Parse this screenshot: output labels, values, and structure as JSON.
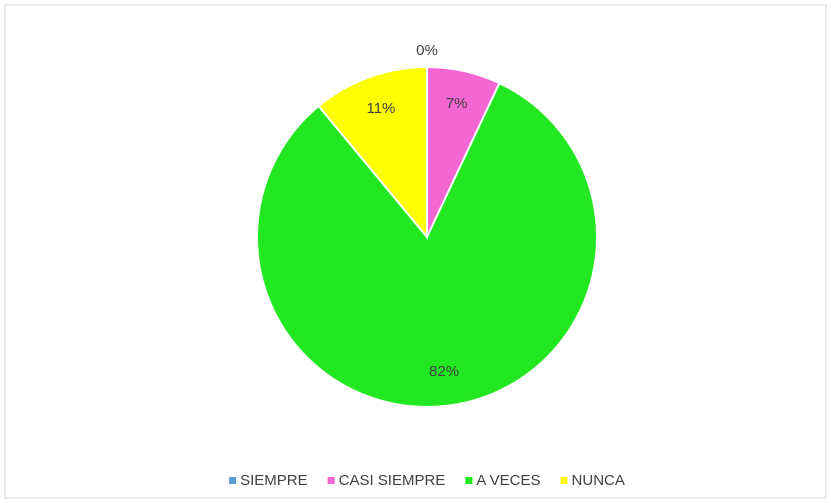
{
  "chart_data": {
    "type": "pie",
    "categories": [
      "SIEMPRE",
      "CASI SIEMPRE",
      "A VECES",
      "NUNCA"
    ],
    "values": [
      0,
      7,
      82,
      11
    ],
    "value_labels": [
      "0%",
      "7%",
      "82%",
      "11%"
    ],
    "colors": [
      "#5b9bd5",
      "#f466d2",
      "#22e822",
      "#ffff00"
    ],
    "legend": "bottom"
  }
}
